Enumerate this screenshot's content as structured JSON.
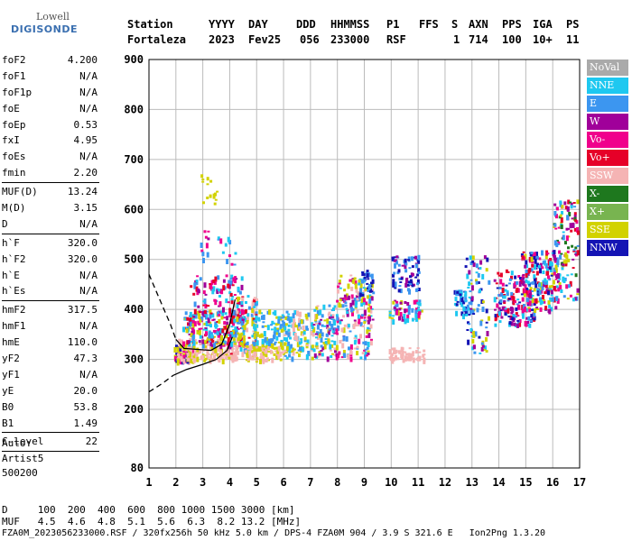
{
  "logo": {
    "brand": "Lowell",
    "product": "DIGISONDE"
  },
  "header": {
    "labels": [
      "Station",
      "YYYY",
      "DAY",
      "DDD",
      "HHMMSS",
      "P1",
      "FFS",
      "S",
      "AXN",
      "PPS",
      "IGA",
      "PS"
    ],
    "values": [
      "Fortaleza",
      "2023",
      "Fev25",
      "056",
      "233000",
      "RSF",
      "1",
      "714",
      "100",
      "10+",
      "11"
    ]
  },
  "parameters": [
    {
      "group": [
        {
          "k": "foF2",
          "v": "4.200"
        },
        {
          "k": "foF1",
          "v": "N/A"
        },
        {
          "k": "foF1p",
          "v": "N/A"
        },
        {
          "k": "foE",
          "v": "N/A"
        },
        {
          "k": "foEp",
          "v": "0.53"
        },
        {
          "k": "fxI",
          "v": "4.95"
        },
        {
          "k": "foEs",
          "v": "N/A"
        },
        {
          "k": "fmin",
          "v": "2.20"
        }
      ]
    },
    {
      "group": [
        {
          "k": "MUF(D)",
          "v": "13.24"
        },
        {
          "k": "M(D)",
          "v": "3.15"
        },
        {
          "k": "D",
          "v": "N/A"
        }
      ]
    },
    {
      "group": [
        {
          "k": "h`F",
          "v": "320.0"
        },
        {
          "k": "h`F2",
          "v": "320.0"
        },
        {
          "k": "h`E",
          "v": "N/A"
        },
        {
          "k": "h`Es",
          "v": "N/A"
        }
      ]
    },
    {
      "group": [
        {
          "k": "hmF2",
          "v": "317.5"
        },
        {
          "k": "hmF1",
          "v": "N/A"
        },
        {
          "k": "hmE",
          "v": "110.0"
        },
        {
          "k": "yF2",
          "v": "47.3"
        },
        {
          "k": "yF1",
          "v": "N/A"
        },
        {
          "k": "yE",
          "v": "20.0"
        },
        {
          "k": "B0",
          "v": "53.8"
        },
        {
          "k": "B1",
          "v": "1.49"
        }
      ]
    },
    {
      "group": [
        {
          "k": "C-level",
          "v": "22"
        }
      ]
    }
  ],
  "auto": {
    "line1": "Auto:",
    "line2": "Artist5",
    "line3": "500200"
  },
  "bottom": {
    "d_row": "D     100  200  400  600  800 1000 1500 3000 [km]",
    "muf_row": "MUF   4.5  4.6  4.8  5.1  5.6  6.3  8.2 13.2 [MHz]",
    "footer": "FZA0M_2023056233000.RSF / 320fx256h 50 kHz 5.0 km / DPS-4 FZA0M 904 / 3.9 S 321.6 E   Ion2Png 1.3.20"
  },
  "legend": [
    {
      "label": "NoVal",
      "color": "#aaaaaa"
    },
    {
      "label": "NNE",
      "color": "#1ec8f0"
    },
    {
      "label": "E",
      "color": "#3c96f0"
    },
    {
      "label": "W",
      "color": "#a0009a"
    },
    {
      "label": "Vo-",
      "color": "#f0008c"
    },
    {
      "label": "Vo+",
      "color": "#e60028"
    },
    {
      "label": "SSW",
      "color": "#f5b4b4"
    },
    {
      "label": "X-",
      "color": "#1e781e"
    },
    {
      "label": "X+",
      "color": "#78b450"
    },
    {
      "label": "SSE",
      "color": "#d2d200"
    },
    {
      "label": "NNW",
      "color": "#1414b4"
    }
  ],
  "chart_data": {
    "type": "scatter",
    "xlim": [
      1,
      17
    ],
    "ylim": [
      80,
      900
    ],
    "x_ticks": [
      1,
      2,
      3,
      4,
      5,
      6,
      7,
      8,
      9,
      10,
      11,
      12,
      13,
      14,
      15,
      16,
      17
    ],
    "y_ticks": [
      80,
      200,
      300,
      400,
      500,
      600,
      700,
      800,
      900
    ],
    "grid": true,
    "legend_position": "right",
    "clusters": [
      {
        "x": [
          1.9,
          2.6
        ],
        "y": [
          295,
          330
        ],
        "colors": [
          "SSW",
          "SSE",
          "Vo-",
          "NNW"
        ],
        "n": 90
      },
      {
        "x": [
          2.0,
          4.3
        ],
        "y": [
          300,
          345
        ],
        "colors": [
          "SSW",
          "SSW",
          "SSE"
        ],
        "n": 170
      },
      {
        "x": [
          2.2,
          4.5
        ],
        "y": [
          330,
          400
        ],
        "colors": [
          "E",
          "NNE",
          "Vo+",
          "Vo-",
          "W",
          "SSE"
        ],
        "n": 230
      },
      {
        "x": [
          2.5,
          4.5
        ],
        "y": [
          390,
          470
        ],
        "colors": [
          "Vo-",
          "W",
          "E",
          "NNE",
          "Vo+"
        ],
        "n": 100
      },
      {
        "x": [
          2.8,
          4.2
        ],
        "y": [
          470,
          560
        ],
        "colors": [
          "W",
          "Vo-",
          "E",
          "NNE"
        ],
        "n": 22
      },
      {
        "x": [
          2.9,
          3.5
        ],
        "y": [
          610,
          680
        ],
        "colors": [
          "SSE"
        ],
        "n": 14
      },
      {
        "x": [
          4.0,
          5.0
        ],
        "y": [
          300,
          430
        ],
        "colors": [
          "E",
          "NNE",
          "SSE",
          "SSW",
          "Vo+"
        ],
        "n": 100
      },
      {
        "x": [
          4.5,
          6.0
        ],
        "y": [
          300,
          330
        ],
        "colors": [
          "SSW",
          "SSE"
        ],
        "n": 90
      },
      {
        "x": [
          4.8,
          6.0
        ],
        "y": [
          330,
          400
        ],
        "colors": [
          "NNE",
          "E",
          "SSE"
        ],
        "n": 90
      },
      {
        "x": [
          6.0,
          6.9
        ],
        "y": [
          305,
          400
        ],
        "colors": [
          "NNE",
          "E",
          "SSE",
          "SSW"
        ],
        "n": 100
      },
      {
        "x": [
          7.0,
          7.9
        ],
        "y": [
          305,
          410
        ],
        "colors": [
          "E",
          "NNE",
          "SSE",
          "W",
          "SSW"
        ],
        "n": 110
      },
      {
        "x": [
          7.9,
          9.3
        ],
        "y": [
          305,
          470
        ],
        "colors": [
          "SSE",
          "NNE",
          "E",
          "SSW",
          "W",
          "Vo-"
        ],
        "n": 190
      },
      {
        "x": [
          8.8,
          9.3
        ],
        "y": [
          430,
          480
        ],
        "colors": [
          "NNW",
          "E"
        ],
        "n": 28
      },
      {
        "x": [
          9.9,
          11.2
        ],
        "y": [
          300,
          325
        ],
        "colors": [
          "SSW"
        ],
        "n": 60
      },
      {
        "x": [
          9.9,
          11.1
        ],
        "y": [
          380,
          420
        ],
        "colors": [
          "SSE",
          "NNE",
          "E",
          "Vo-",
          "W"
        ],
        "n": 60
      },
      {
        "x": [
          10.0,
          11.0
        ],
        "y": [
          440,
          510
        ],
        "colors": [
          "NNW",
          "W",
          "E"
        ],
        "n": 70
      },
      {
        "x": [
          12.3,
          13.0
        ],
        "y": [
          390,
          440
        ],
        "colors": [
          "E",
          "NNE",
          "NNW"
        ],
        "n": 45
      },
      {
        "x": [
          12.7,
          13.6
        ],
        "y": [
          310,
          510
        ],
        "colors": [
          "NNE",
          "E",
          "NNW",
          "W",
          "SSE"
        ],
        "n": 80
      },
      {
        "x": [
          13.8,
          15.3
        ],
        "y": [
          370,
          480
        ],
        "colors": [
          "NNE",
          "E",
          "W",
          "NNW",
          "Vo-",
          "Vo+"
        ],
        "n": 170
      },
      {
        "x": [
          14.8,
          16.2
        ],
        "y": [
          400,
          520
        ],
        "colors": [
          "E",
          "NNE",
          "W",
          "Vo+",
          "NNW",
          "SSE",
          "Vo-"
        ],
        "n": 180
      },
      {
        "x": [
          16.0,
          16.9
        ],
        "y": [
          420,
          620
        ],
        "colors": [
          "E",
          "W",
          "Vo+",
          "SSE",
          "X-",
          "NNE",
          "Vo-"
        ],
        "n": 130
      }
    ],
    "profile": {
      "dashed_upper": [
        [
          1.0,
          470
        ],
        [
          1.4,
          420
        ],
        [
          1.8,
          370
        ],
        [
          2.0,
          340
        ]
      ],
      "dashed_lower": [
        [
          1.0,
          235
        ],
        [
          1.5,
          252
        ],
        [
          1.9,
          268
        ]
      ],
      "solid_upper": [
        [
          2.0,
          340
        ],
        [
          2.3,
          322
        ],
        [
          2.8,
          320
        ],
        [
          3.3,
          318
        ],
        [
          3.7,
          330
        ],
        [
          4.0,
          370
        ],
        [
          4.2,
          420
        ]
      ],
      "solid_lower": [
        [
          1.9,
          268
        ],
        [
          2.4,
          280
        ],
        [
          3.0,
          290
        ],
        [
          3.5,
          300
        ],
        [
          3.9,
          318
        ],
        [
          4.1,
          345
        ]
      ]
    }
  }
}
